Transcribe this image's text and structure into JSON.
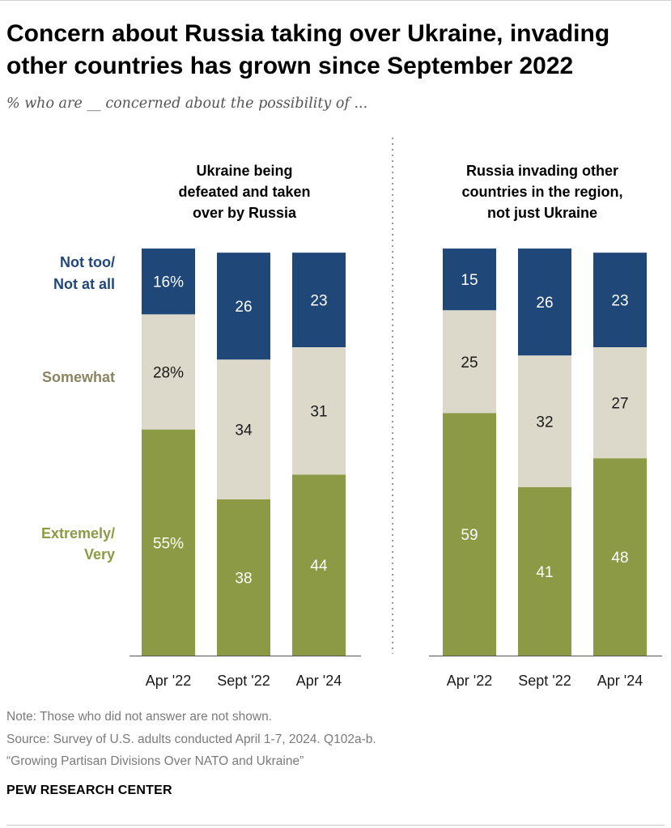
{
  "title": "Concern about Russia taking over Ukraine, invading other countries has grown since September 2022",
  "subtitle": "% who are __ concerned about the possibility of ...",
  "colors": {
    "extremely": "#8c9a45",
    "somewhat": "#dcd9ca",
    "not_too": "#1f4778",
    "dark_text": "#1a1a1a",
    "light_text": "#ffffff",
    "somewhat_label": "#8a8463",
    "axis": "#555555",
    "divider": "#999999"
  },
  "chart_data": [
    {
      "type": "bar",
      "stacked": true,
      "title": "Ukraine being defeated and taken over by Russia",
      "title_lines": [
        "Ukraine being",
        "defeated and taken",
        "over by Russia"
      ],
      "categories": [
        "Apr '22",
        "Sept '22",
        "Apr '24"
      ],
      "series": [
        {
          "name": "Extremely/ Very",
          "key": "extremely",
          "values": [
            55,
            38,
            44
          ],
          "labels": [
            "55%",
            "38",
            "44"
          ]
        },
        {
          "name": "Somewhat",
          "key": "somewhat",
          "values": [
            28,
            34,
            31
          ],
          "labels": [
            "28%",
            "34",
            "31"
          ]
        },
        {
          "name": "Not too/ Not at all",
          "key": "not_too",
          "values": [
            16,
            26,
            23
          ],
          "labels": [
            "16%",
            "26",
            "23"
          ]
        }
      ],
      "ylim": [
        0,
        100
      ]
    },
    {
      "type": "bar",
      "stacked": true,
      "title": "Russia invading other countries in the region, not just Ukraine",
      "title_lines": [
        "Russia invading other",
        "countries in the region,",
        "not just Ukraine"
      ],
      "categories": [
        "Apr '22",
        "Sept '22",
        "Apr '24"
      ],
      "series": [
        {
          "name": "Extremely/ Very",
          "key": "extremely",
          "values": [
            59,
            41,
            48
          ],
          "labels": [
            "59",
            "41",
            "48"
          ]
        },
        {
          "name": "Somewhat",
          "key": "somewhat",
          "values": [
            25,
            32,
            27
          ],
          "labels": [
            "25",
            "32",
            "27"
          ]
        },
        {
          "name": "Not too/ Not at all",
          "key": "not_too",
          "values": [
            15,
            26,
            23
          ],
          "labels": [
            "15",
            "26",
            "23"
          ]
        }
      ],
      "ylim": [
        0,
        100
      ]
    }
  ],
  "legend": [
    {
      "key": "not_too",
      "lines": [
        "Not too/",
        "Not at all"
      ]
    },
    {
      "key": "somewhat",
      "lines": [
        "Somewhat"
      ]
    },
    {
      "key": "extremely",
      "lines": [
        "Extremely/",
        "Very"
      ]
    }
  ],
  "notes": {
    "note": "Note: Those who did not answer are not shown.",
    "source": "Source: Survey of U.S. adults conducted April 1-7, 2024. Q102a-b.",
    "report": "“Growing Partisan Divisions Over NATO and Ukraine”"
  },
  "brand": "PEW RESEARCH CENTER"
}
